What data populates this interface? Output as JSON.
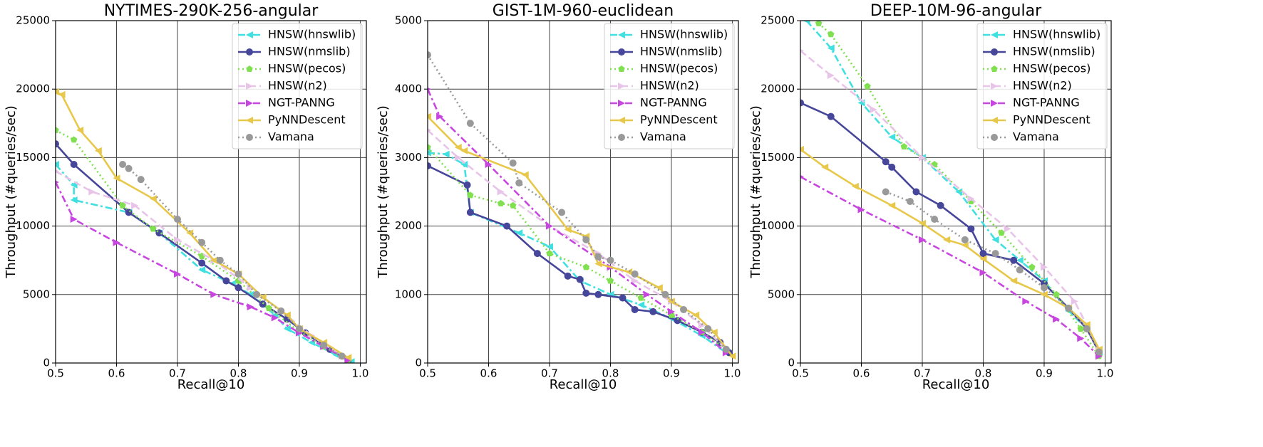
{
  "chart_data": [
    {
      "type": "line",
      "title": "NYTIMES-290K-256-angular",
      "xlabel": "Recall@10",
      "ylabel": "Throughput (#queries/sec)",
      "xlim": [
        0.5,
        1.01
      ],
      "xticks": [
        0.5,
        0.6,
        0.7,
        0.8,
        0.9,
        {
          "value": 1,
          "label": "1.0"
        }
      ],
      "ylim": [
        0,
        25000
      ],
      "yticks": [
        0,
        5000,
        10000,
        15000,
        20000,
        25000
      ],
      "grid": true,
      "legend": "upper right",
      "series": [
        {
          "name": "HNSW(hnswlib)",
          "color": "#40e0e0",
          "linestyle": "dashdot",
          "marker": "triangle-left",
          "x": [
            0.5,
            0.53,
            0.53,
            0.62,
            0.67,
            0.74,
            0.79,
            0.82,
            0.86,
            0.88,
            0.92,
            0.96,
            0.985
          ],
          "values": [
            14500,
            13000,
            11900,
            11000,
            9500,
            6800,
            5800,
            5000,
            3500,
            2500,
            1500,
            600,
            100
          ]
        },
        {
          "name": "HNSW(nmslib)",
          "color": "#46469a",
          "linestyle": "solid",
          "marker": "circle",
          "x": [
            0.5,
            0.53,
            0.62,
            0.67,
            0.74,
            0.78,
            0.8,
            0.84,
            0.88,
            0.91,
            0.95,
            0.98
          ],
          "values": [
            16000,
            14500,
            11000,
            9500,
            7300,
            6000,
            5500,
            4300,
            3200,
            2200,
            1000,
            200
          ]
        },
        {
          "name": "HNSW(pecos)",
          "color": "#80e050",
          "linestyle": "dotted",
          "marker": "pentagon",
          "x": [
            0.5,
            0.53,
            0.61,
            0.66,
            0.74,
            0.8,
            0.85,
            0.9,
            0.94,
            0.98
          ],
          "values": [
            17000,
            16300,
            11500,
            9800,
            7800,
            6000,
            4000,
            2300,
            1200,
            200
          ]
        },
        {
          "name": "HNSW(n2)",
          "color": "#e8c4e8",
          "linestyle": "dashed",
          "marker": "triangle-right",
          "x": [
            0.5,
            0.56,
            0.63,
            0.7,
            0.76,
            0.82,
            0.87,
            0.92,
            0.97
          ],
          "values": [
            14000,
            12500,
            11500,
            9000,
            7500,
            5500,
            3800,
            2000,
            500
          ]
        },
        {
          "name": "NGT-PANNG",
          "color": "#c846e0",
          "linestyle": "dashdot",
          "marker": "triangle-right",
          "x": [
            0.5,
            0.53,
            0.6,
            0.7,
            0.76,
            0.82,
            0.86,
            0.9,
            0.94,
            0.98
          ],
          "values": [
            13200,
            10500,
            8800,
            6500,
            5000,
            4100,
            3300,
            2200,
            1200,
            200
          ]
        },
        {
          "name": "PyNNDescent",
          "color": "#e8c84a",
          "linestyle": "solid",
          "marker": "triangle-left",
          "x": [
            0.5,
            0.51,
            0.54,
            0.57,
            0.6,
            0.66,
            0.72,
            0.76,
            0.8,
            0.84,
            0.88,
            0.9,
            0.94,
            0.98
          ],
          "values": [
            19800,
            19600,
            17000,
            15500,
            13500,
            12000,
            9500,
            7500,
            6500,
            4800,
            3500,
            2500,
            1500,
            400
          ]
        },
        {
          "name": "Vamana",
          "color": "#999999",
          "linestyle": "dotted",
          "marker": "circle",
          "x": [
            0.61,
            0.62,
            0.64,
            0.7,
            0.74,
            0.77,
            0.8,
            0.83,
            0.87,
            0.9,
            0.94,
            0.97
          ],
          "values": [
            14500,
            14200,
            13400,
            10500,
            8800,
            7500,
            6500,
            5000,
            3800,
            2500,
            1300,
            500
          ]
        }
      ]
    },
    {
      "type": "line",
      "title": "GIST-1M-960-euclidean",
      "xlabel": "Recall@10",
      "ylabel": "Throughput (#queries/sec)",
      "xlim": [
        0.5,
        1.01
      ],
      "xticks": [
        0.5,
        0.6,
        0.7,
        0.8,
        0.9,
        {
          "value": 1,
          "label": "1.0"
        }
      ],
      "ylim": [
        0,
        5000
      ],
      "yticks": [
        0,
        1000,
        2000,
        3000,
        4000,
        5000
      ],
      "grid": true,
      "legend": "upper right",
      "series": [
        {
          "name": "HNSW(hnswlib)",
          "color": "#40e0e0",
          "linestyle": "dashdot",
          "marker": "triangle-left",
          "x": [
            0.5,
            0.53,
            0.56,
            0.57,
            0.65,
            0.7,
            0.75,
            0.8,
            0.85,
            0.9,
            0.95,
            0.99
          ],
          "values": [
            3070,
            3050,
            2900,
            2200,
            1900,
            1700,
            1200,
            1000,
            850,
            650,
            400,
            150
          ]
        },
        {
          "name": "HNSW(nmslib)",
          "color": "#46469a",
          "linestyle": "solid",
          "marker": "circle",
          "x": [
            0.5,
            0.565,
            0.57,
            0.63,
            0.68,
            0.73,
            0.75,
            0.76,
            0.78,
            0.82,
            0.84,
            0.87,
            0.91,
            0.95,
            0.98,
            0.995
          ],
          "values": [
            2880,
            2600,
            2200,
            2000,
            1600,
            1270,
            1220,
            1020,
            1000,
            950,
            780,
            750,
            620,
            450,
            300,
            150
          ]
        },
        {
          "name": "HNSW(pecos)",
          "color": "#80e050",
          "linestyle": "dotted",
          "marker": "pentagon",
          "x": [
            0.5,
            0.57,
            0.62,
            0.64,
            0.7,
            0.76,
            0.8,
            0.85,
            0.9,
            0.95,
            0.99
          ],
          "values": [
            3150,
            2450,
            2330,
            2300,
            1600,
            1400,
            1200,
            950,
            700,
            450,
            200
          ]
        },
        {
          "name": "HNSW(n2)",
          "color": "#e8c4e8",
          "linestyle": "dashed",
          "marker": "triangle-right",
          "x": [
            0.5,
            0.55,
            0.62,
            0.7,
            0.78,
            0.84,
            0.9,
            0.95,
            0.99
          ],
          "values": [
            3400,
            3000,
            2500,
            2000,
            1600,
            1200,
            900,
            550,
            200
          ]
        },
        {
          "name": "NGT-PANNG",
          "color": "#c846e0",
          "linestyle": "dashdot",
          "marker": "triangle-right",
          "x": [
            0.5,
            0.52,
            0.6,
            0.7,
            0.8,
            0.86,
            0.9,
            0.95,
            0.99
          ],
          "values": [
            4000,
            3600,
            2900,
            2000,
            1400,
            1000,
            750,
            450,
            150
          ]
        },
        {
          "name": "PyNNDescent",
          "color": "#e8c84a",
          "linestyle": "solid",
          "marker": "triangle-left",
          "x": [
            0.5,
            0.55,
            0.56,
            0.66,
            0.73,
            0.76,
            0.78,
            0.83,
            0.88,
            0.9,
            0.94,
            0.97,
            1
          ],
          "values": [
            3600,
            3150,
            3100,
            2750,
            1950,
            1850,
            1450,
            1330,
            1100,
            900,
            700,
            450,
            100
          ]
        },
        {
          "name": "Vamana",
          "color": "#999999",
          "linestyle": "dotted",
          "marker": "circle",
          "x": [
            0.5,
            0.57,
            0.64,
            0.65,
            0.72,
            0.76,
            0.78,
            0.8,
            0.84,
            0.89,
            0.92,
            0.96,
            0.99
          ],
          "values": [
            4500,
            3500,
            2920,
            2630,
            2200,
            1800,
            1550,
            1500,
            1300,
            1000,
            780,
            500,
            200
          ]
        }
      ]
    },
    {
      "type": "line",
      "title": "DEEP-10M-96-angular",
      "xlabel": "Recall@10",
      "ylabel": "Throughput (#queries/sec)",
      "xlim": [
        0.5,
        1.01
      ],
      "xticks": [
        0.5,
        0.6,
        0.7,
        0.8,
        0.9,
        {
          "value": 1,
          "label": "1.0"
        }
      ],
      "ylim": [
        0,
        25000
      ],
      "yticks": [
        0,
        5000,
        10000,
        15000,
        20000,
        25000
      ],
      "grid": true,
      "legend": "upper right",
      "series": [
        {
          "name": "HNSW(hnswlib)",
          "color": "#40e0e0",
          "linestyle": "dashdot",
          "marker": "triangle-left",
          "x": [
            0.51,
            0.55,
            0.6,
            0.65,
            0.7,
            0.76,
            0.82,
            0.86,
            0.9,
            0.94,
            0.97,
            0.99
          ],
          "values": [
            25000,
            23000,
            19000,
            16500,
            15000,
            12500,
            9000,
            7500,
            6000,
            3800,
            2500,
            800
          ]
        },
        {
          "name": "HNSW(nmslib)",
          "color": "#46469a",
          "linestyle": "solid",
          "marker": "circle",
          "x": [
            0.5,
            0.55,
            0.64,
            0.65,
            0.69,
            0.73,
            0.78,
            0.8,
            0.85,
            0.9,
            0.94,
            0.97,
            0.99
          ],
          "values": [
            19000,
            18000,
            14700,
            14300,
            12500,
            11500,
            9800,
            8000,
            7500,
            5800,
            4000,
            2500,
            800
          ]
        },
        {
          "name": "HNSW(pecos)",
          "color": "#80e050",
          "linestyle": "dotted",
          "marker": "pentagon",
          "x": [
            0.53,
            0.55,
            0.61,
            0.67,
            0.72,
            0.78,
            0.83,
            0.88,
            0.92,
            0.96,
            0.99
          ],
          "values": [
            24800,
            24000,
            20200,
            15800,
            14500,
            11800,
            9500,
            7000,
            5000,
            2500,
            500
          ]
        },
        {
          "name": "HNSW(n2)",
          "color": "#e8c4e8",
          "linestyle": "dashed",
          "marker": "triangle-right",
          "x": [
            0.5,
            0.55,
            0.62,
            0.7,
            0.78,
            0.84,
            0.9,
            0.95,
            0.99
          ],
          "values": [
            22800,
            21000,
            18500,
            15000,
            12000,
            9800,
            7000,
            4500,
            1000
          ]
        },
        {
          "name": "NGT-PANNG",
          "color": "#c846e0",
          "linestyle": "dashdot",
          "marker": "triangle-right",
          "x": [
            0.5,
            0.6,
            0.7,
            0.8,
            0.87,
            0.92,
            0.96,
            0.99
          ],
          "values": [
            13600,
            11200,
            9000,
            6600,
            4500,
            3200,
            1800,
            500
          ]
        },
        {
          "name": "PyNNDescent",
          "color": "#e8c84a",
          "linestyle": "solid",
          "marker": "triangle-left",
          "x": [
            0.5,
            0.54,
            0.59,
            0.65,
            0.7,
            0.74,
            0.77,
            0.8,
            0.85,
            0.9,
            0.94,
            0.97,
            0.99
          ],
          "values": [
            15600,
            14300,
            12900,
            11500,
            10200,
            9000,
            8600,
            7600,
            6000,
            5000,
            4000,
            2800,
            1000
          ]
        },
        {
          "name": "Vamana",
          "color": "#999999",
          "linestyle": "dotted",
          "marker": "circle",
          "x": [
            0.64,
            0.68,
            0.72,
            0.77,
            0.82,
            0.86,
            0.9,
            0.94,
            0.97,
            0.99
          ],
          "values": [
            12500,
            11800,
            10500,
            9000,
            8000,
            6800,
            5500,
            4000,
            2500,
            800
          ]
        }
      ]
    }
  ]
}
